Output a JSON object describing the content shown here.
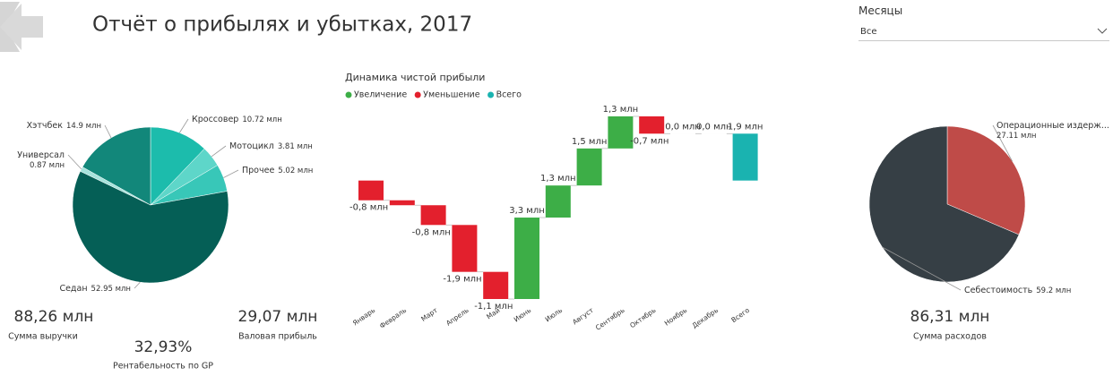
{
  "header": {
    "title": "Отчёт о прибылях и убытках,  2017"
  },
  "slicer": {
    "label": "Месяцы",
    "value": "Все"
  },
  "kpis": [
    {
      "value": "88,26 млн",
      "label": "Сумма выручки"
    },
    {
      "value": "29,07 млн",
      "label": "Валовая прибыль"
    },
    {
      "value": "32,93%",
      "label": "Рентабельность по GP"
    },
    {
      "value": "86,31 млн",
      "label": "Сумма расходов"
    }
  ],
  "chart_data": [
    {
      "type": "pie",
      "categories": [
        "Кроссовер",
        "Мотоцикл",
        "Прочее",
        "Седан",
        "Универсал",
        "Хэтчбек"
      ],
      "values": [
        10.72,
        3.81,
        5.02,
        52.95,
        0.87,
        14.9
      ],
      "value_labels": [
        "10.72 млн",
        "3.81 млн",
        "5.02 млн",
        "52.95 млн",
        "0.87 млн",
        "14.9 млн"
      ],
      "colors": [
        "#1cbcac",
        "#5ed6c9",
        "#38c7b8",
        "#055f56",
        "#a6e3dc",
        "#12877a"
      ]
    },
    {
      "type": "waterfall",
      "title": "Динамика чистой прибыли",
      "legend": [
        {
          "name": "Увеличение",
          "color": "#3dae47"
        },
        {
          "name": "Уменьшение",
          "color": "#e3202d"
        },
        {
          "name": "Всего",
          "color": "#1ab3b0"
        }
      ],
      "categories": [
        "Январь",
        "Февраль",
        "Март",
        "Апрель",
        "Май",
        "Июнь",
        "Июль",
        "Август",
        "Сентябрь",
        "Октябрь",
        "Ноябрь",
        "Декабрь",
        "Всего"
      ],
      "values": [
        -0.8,
        -0.2,
        -0.8,
        -1.9,
        -1.1,
        3.3,
        1.3,
        1.5,
        1.3,
        -0.7,
        0.0,
        0.0,
        1.9
      ],
      "value_labels": [
        "-0,8 млн",
        null,
        "-0,8 млн",
        "-1,9 млн",
        "-1,1 млн",
        "3,3 млн",
        "1,3 млн",
        "1,5 млн",
        "1,3 млн",
        "-0,7 млн",
        "0,0 млн",
        "0,0 млн",
        "1,9 млн"
      ]
    },
    {
      "type": "pie",
      "categories": [
        "Операционные издерж...",
        "Себестоимость"
      ],
      "values": [
        27.11,
        59.2
      ],
      "value_labels": [
        "27.11 млн",
        "59.2 млн"
      ],
      "colors": [
        "#bf4b48",
        "#363f45"
      ]
    }
  ]
}
